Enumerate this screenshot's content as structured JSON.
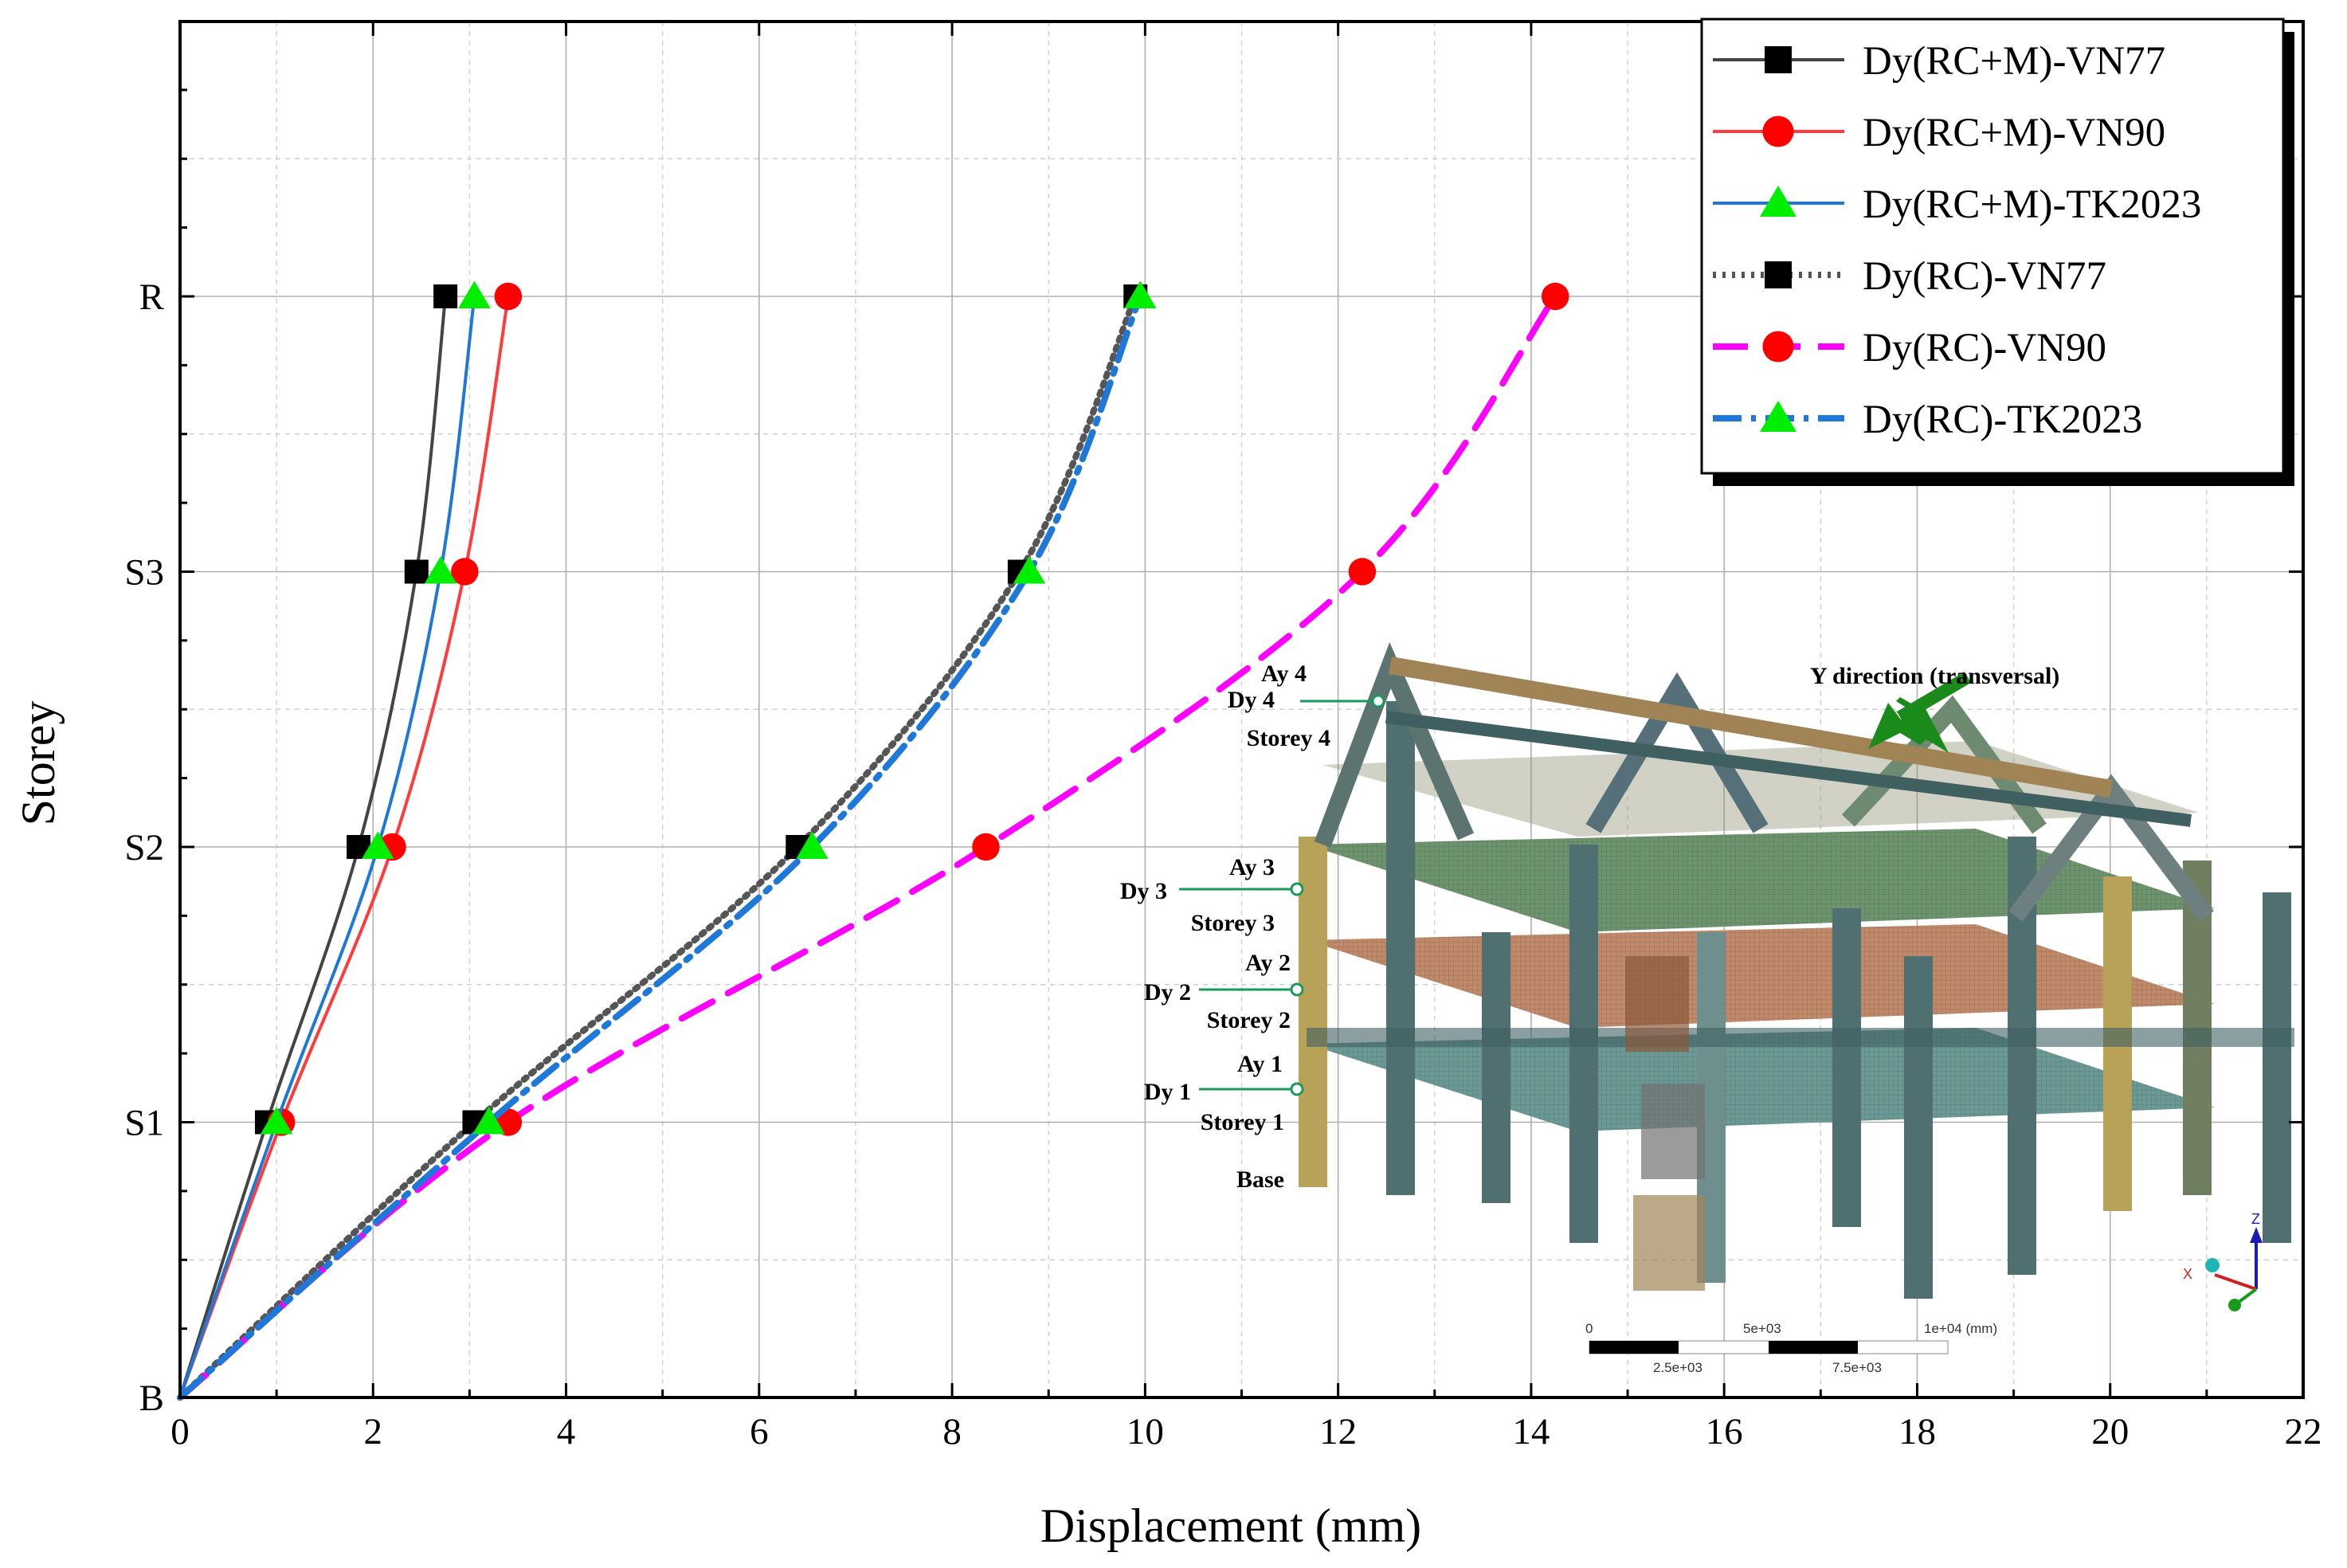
{
  "chart_data": {
    "type": "line",
    "xlabel": "Displacement (mm)",
    "ylabel": "Storey",
    "xlim": [
      0,
      22
    ],
    "x_ticks": [
      0,
      2,
      4,
      6,
      8,
      10,
      12,
      14,
      16,
      18,
      20,
      22
    ],
    "y_categories": [
      "B",
      "S1",
      "S2",
      "S3",
      "R"
    ],
    "grid": true,
    "legend_position": "top-right",
    "series": [
      {
        "name": "Dy(RC+M)-VN77",
        "color": "#000000",
        "line_color": "#444444",
        "line_style": "solid",
        "marker": "square",
        "values": [
          0,
          0.9,
          1.85,
          2.45,
          2.75
        ]
      },
      {
        "name": "Dy(RC+M)-VN90",
        "color": "#ff0000",
        "line_color": "#ff3b3b",
        "line_style": "solid",
        "marker": "circle",
        "values": [
          0,
          1.05,
          2.2,
          2.95,
          3.4
        ]
      },
      {
        "name": "Dy(RC+M)-TK2023",
        "color": "#00ee00",
        "line_color": "#1e78d8",
        "line_style": "solid",
        "marker": "triangle",
        "values": [
          0,
          1.0,
          2.05,
          2.7,
          3.05
        ]
      },
      {
        "name": "Dy(RC)-VN77",
        "color": "#000000",
        "line_color": "#555555",
        "line_style": "dotted",
        "marker": "square",
        "values": [
          0,
          3.05,
          6.4,
          8.7,
          9.9
        ]
      },
      {
        "name": "Dy(RC)-VN90",
        "color": "#ff0000",
        "line_color": "#ff00ff",
        "line_style": "dashed",
        "marker": "circle",
        "values": [
          0,
          3.4,
          8.35,
          12.25,
          14.25
        ]
      },
      {
        "name": "Dy(RC)-TK2023",
        "color": "#00ee00",
        "line_color": "#1e78d8",
        "line_style": "dashdot",
        "marker": "triangle",
        "values": [
          0,
          3.2,
          6.55,
          8.8,
          9.95
        ]
      }
    ]
  },
  "model_inset": {
    "direction_label": "Y direction (transversal)",
    "labels": [
      "Ay 4",
      "Dy 4",
      "Storey 4",
      "Ay 3",
      "Dy 3",
      "Storey 3",
      "Ay 2",
      "Dy 2",
      "Storey 2",
      "Ay 1",
      "Dy 1",
      "Storey 1",
      "Base"
    ],
    "axis_labels": [
      "Z",
      "X"
    ],
    "scale_top": [
      "0",
      "5e+03",
      "1e+04 (mm)"
    ],
    "scale_bottom": [
      "2.5e+03",
      "7.5e+03"
    ]
  }
}
